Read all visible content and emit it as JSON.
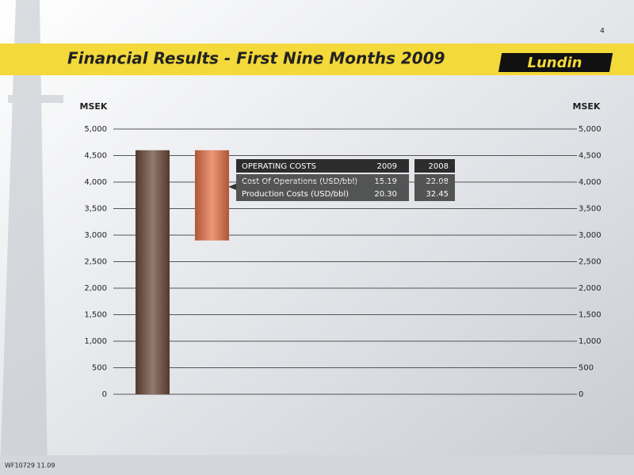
{
  "page_number": "4",
  "logo": "Lundin",
  "footer": "WF10729 11.09",
  "chart_data": {
    "type": "waterfall",
    "title": "Financial Results - First Nine Months 2009",
    "ylabel": "MSEK",
    "y2label": "MSEK",
    "categories": [
      null,
      null
    ],
    "values": [
      4600,
      -1700
    ],
    "colors": [
      "#6e4c3c",
      "#e8744a"
    ],
    "ylim": [
      0,
      5000
    ],
    "yticks": [
      0,
      {
        "value": 500,
        "label": "500"
      },
      {
        "value": 1000,
        "label": "1,000"
      },
      {
        "value": 1500,
        "label": "1,500"
      },
      {
        "value": 2000,
        "label": "2,000"
      },
      {
        "value": 2500,
        "label": "2,500"
      },
      {
        "value": 3000,
        "label": "3,000"
      },
      {
        "value": 3500,
        "label": "3,500"
      },
      {
        "value": 4000,
        "label": "4,000"
      },
      {
        "value": 4500,
        "label": "4,500"
      },
      {
        "value": 5000,
        "label": "5,000"
      }
    ],
    "y2lim": [
      0,
      5000
    ],
    "y2ticks": [
      0,
      500,
      {
        "value": 1000,
        "label": "1,000"
      },
      {
        "value": 1500,
        "label": "1,500"
      },
      {
        "value": 2000,
        "label": "2,000"
      },
      {
        "value": 2500,
        "label": "2,500"
      },
      {
        "value": 3000,
        "label": "3,000"
      },
      {
        "value": 3500,
        "label": "3,500"
      },
      {
        "value": 4000,
        "label": "4,000"
      },
      {
        "value": 4500,
        "label": "4,500"
      },
      {
        "value": 5000,
        "label": "5,000"
      }
    ],
    "grid": true
  },
  "table": {
    "header": [
      "OPERATING COSTS",
      "2009",
      "2008"
    ],
    "rows": [
      [
        "Cost Of Operations (USD/bbl)",
        "15.19",
        "22.08"
      ],
      [
        "Production Costs (USD/bbl)",
        "20.30",
        "32.45"
      ]
    ]
  }
}
